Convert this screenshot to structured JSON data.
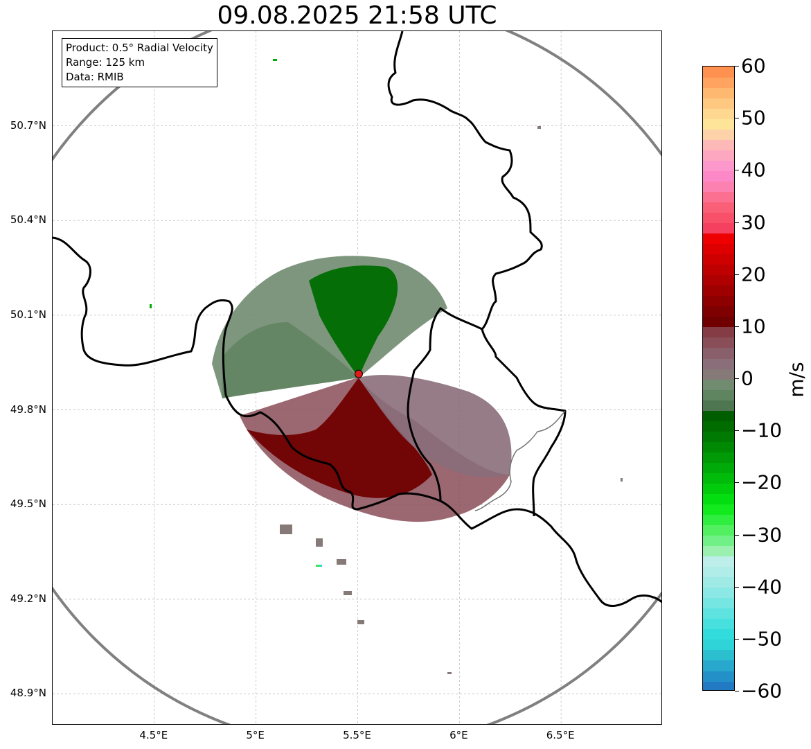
{
  "title": "09.08.2025 21:58 UTC",
  "info_box": {
    "product": "Product: 0.5° Radial Velocity",
    "range": "Range: 125 km",
    "data": "Data: RMIB"
  },
  "map": {
    "lon_range": [
      4.0,
      7.0
    ],
    "lat_range": [
      48.8,
      51.0
    ],
    "lat_ticks": [
      {
        "value": 50.7,
        "label": "50.7°N"
      },
      {
        "value": 50.4,
        "label": "50.4°N"
      },
      {
        "value": 50.1,
        "label": "50.1°N"
      },
      {
        "value": 49.8,
        "label": "49.8°N"
      },
      {
        "value": 49.5,
        "label": "49.5°N"
      },
      {
        "value": 49.2,
        "label": "49.2°N"
      },
      {
        "value": 48.9,
        "label": "48.9°N"
      }
    ],
    "lon_ticks": [
      {
        "value": 4.5,
        "label": "4.5°E"
      },
      {
        "value": 5.0,
        "label": "5°E"
      },
      {
        "value": 5.5,
        "label": "5.5°E"
      },
      {
        "value": 6.0,
        "label": "6°E"
      },
      {
        "value": 6.5,
        "label": "6.5°E"
      }
    ],
    "radar_site": {
      "lon": 5.505,
      "lat": 49.914
    },
    "range_ring_km": 125,
    "colors": {
      "range_ring": "#808080",
      "border": "#000000",
      "grid": "#bdbdbd",
      "radar_marker": "#e11a1a"
    }
  },
  "colorbar": {
    "unit": "m/s",
    "min": -60,
    "max": 60,
    "ticks": [
      {
        "value": 60,
        "label": "60"
      },
      {
        "value": 50,
        "label": "50"
      },
      {
        "value": 40,
        "label": "40"
      },
      {
        "value": 30,
        "label": "30"
      },
      {
        "value": 20,
        "label": "20"
      },
      {
        "value": 10,
        "label": "10"
      },
      {
        "value": 0,
        "label": "0"
      },
      {
        "value": -10,
        "label": "−10"
      },
      {
        "value": -20,
        "label": "−20"
      },
      {
        "value": -30,
        "label": "−30"
      },
      {
        "value": -40,
        "label": "−40"
      },
      {
        "value": -50,
        "label": "−50"
      },
      {
        "value": -60,
        "label": "−60"
      }
    ],
    "bands": [
      {
        "from": -60,
        "to": -58,
        "color": "#2279c4"
      },
      {
        "from": -58,
        "to": -56,
        "color": "#2490c8"
      },
      {
        "from": -56,
        "to": -54,
        "color": "#28a8cc"
      },
      {
        "from": -54,
        "to": -52,
        "color": "#2bbfd0"
      },
      {
        "from": -52,
        "to": -50,
        "color": "#2ed4d8"
      },
      {
        "from": -50,
        "to": -48,
        "color": "#33dcdc"
      },
      {
        "from": -48,
        "to": -46,
        "color": "#48e0de"
      },
      {
        "from": -46,
        "to": -44,
        "color": "#5fe3e0"
      },
      {
        "from": -44,
        "to": -42,
        "color": "#76e6e2"
      },
      {
        "from": -42,
        "to": -40,
        "color": "#8ce8e4"
      },
      {
        "from": -40,
        "to": -38,
        "color": "#a0eae6"
      },
      {
        "from": -38,
        "to": -36,
        "color": "#b0ece8"
      },
      {
        "from": -36,
        "to": -34,
        "color": "#bdeeea"
      },
      {
        "from": -34,
        "to": -32,
        "color": "#9bf0b0"
      },
      {
        "from": -32,
        "to": -30,
        "color": "#72f088"
      },
      {
        "from": -30,
        "to": -28,
        "color": "#52f060"
      },
      {
        "from": -28,
        "to": -26,
        "color": "#30ee40"
      },
      {
        "from": -26,
        "to": -24,
        "color": "#12ea1e"
      },
      {
        "from": -24,
        "to": -22,
        "color": "#02de10"
      },
      {
        "from": -22,
        "to": -20,
        "color": "#00cc0c"
      },
      {
        "from": -20,
        "to": -18,
        "color": "#00bb0a"
      },
      {
        "from": -18,
        "to": -16,
        "color": "#00aa08"
      },
      {
        "from": -16,
        "to": -14,
        "color": "#009a06"
      },
      {
        "from": -14,
        "to": -12,
        "color": "#008a04"
      },
      {
        "from": -12,
        "to": -10,
        "color": "#007a02"
      },
      {
        "from": -10,
        "to": -8,
        "color": "#006c00"
      },
      {
        "from": -8,
        "to": -6,
        "color": "#005e00"
      },
      {
        "from": -6,
        "to": -4,
        "color": "#4e7650"
      },
      {
        "from": -4,
        "to": -2,
        "color": "#5f8460"
      },
      {
        "from": -2,
        "to": 0,
        "color": "#708b70"
      },
      {
        "from": 0,
        "to": 2,
        "color": "#857a78"
      },
      {
        "from": 2,
        "to": 4,
        "color": "#8a6e7a"
      },
      {
        "from": 4,
        "to": 6,
        "color": "#8a5f6c"
      },
      {
        "from": 6,
        "to": 8,
        "color": "#8a4e58"
      },
      {
        "from": 8,
        "to": 10,
        "color": "#853c44"
      },
      {
        "from": 10,
        "to": 12,
        "color": "#700000"
      },
      {
        "from": 12,
        "to": 14,
        "color": "#7e0000"
      },
      {
        "from": 14,
        "to": 16,
        "color": "#8e0000"
      },
      {
        "from": 16,
        "to": 18,
        "color": "#9e0000"
      },
      {
        "from": 18,
        "to": 20,
        "color": "#ae0000"
      },
      {
        "from": 20,
        "to": 22,
        "color": "#be0000"
      },
      {
        "from": 22,
        "to": 24,
        "color": "#ce0000"
      },
      {
        "from": 24,
        "to": 26,
        "color": "#de0000"
      },
      {
        "from": 26,
        "to": 28,
        "color": "#ee0000"
      },
      {
        "from": 28,
        "to": 30,
        "color": "#f54060"
      },
      {
        "from": 30,
        "to": 32,
        "color": "#f75068"
      },
      {
        "from": 32,
        "to": 34,
        "color": "#f96078"
      },
      {
        "from": 34,
        "to": 36,
        "color": "#fb7090"
      },
      {
        "from": 36,
        "to": 38,
        "color": "#fc80b0"
      },
      {
        "from": 38,
        "to": 40,
        "color": "#fd88c8"
      },
      {
        "from": 40,
        "to": 42,
        "color": "#fd98cc"
      },
      {
        "from": 42,
        "to": 44,
        "color": "#fda8c0"
      },
      {
        "from": 44,
        "to": 46,
        "color": "#fdb8b8"
      },
      {
        "from": 46,
        "to": 48,
        "color": "#fdd2a8"
      },
      {
        "from": 48,
        "to": 50,
        "color": "#fee498"
      },
      {
        "from": 50,
        "to": 52,
        "color": "#fed890"
      },
      {
        "from": 52,
        "to": 54,
        "color": "#fec880"
      },
      {
        "from": 54,
        "to": 56,
        "color": "#feb870"
      },
      {
        "from": 56,
        "to": 58,
        "color": "#fea460"
      },
      {
        "from": 58,
        "to": 60,
        "color": "#fe9050"
      }
    ]
  }
}
